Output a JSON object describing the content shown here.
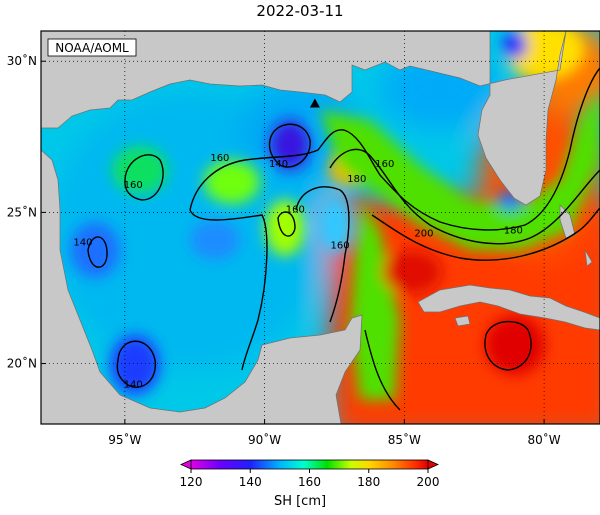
{
  "title": "2022-03-11",
  "credit": "NOAA/AOML",
  "map": {
    "lon_range": [
      -98,
      -78
    ],
    "lat_range": [
      18,
      31
    ],
    "lon_ticks": [
      {
        "value": -95,
        "label": "95˚W"
      },
      {
        "value": -90,
        "label": "90˚W"
      },
      {
        "value": -85,
        "label": "85˚W"
      },
      {
        "value": -80,
        "label": "80˚W"
      }
    ],
    "lat_ticks": [
      {
        "value": 30,
        "label": "30˚N"
      },
      {
        "value": 25,
        "label": "25˚N"
      },
      {
        "value": 20,
        "label": "20˚N"
      }
    ],
    "grid": "dotted",
    "marker": {
      "symbol": "triangle",
      "lon": -88.2,
      "lat": 28.6
    },
    "contour_labels": [
      {
        "text": "160",
        "lon": -94.7,
        "lat": 25.9
      },
      {
        "text": "140",
        "lon": -89.5,
        "lat": 26.6
      },
      {
        "text": "160",
        "lon": -91.6,
        "lat": 26.8
      },
      {
        "text": "160",
        "lon": -88.9,
        "lat": 25.1
      },
      {
        "text": "180",
        "lon": -86.7,
        "lat": 26.1
      },
      {
        "text": "160",
        "lon": -85.7,
        "lat": 26.6
      },
      {
        "text": "160",
        "lon": -87.3,
        "lat": 23.9
      },
      {
        "text": "140",
        "lon": -96.5,
        "lat": 24.0
      },
      {
        "text": "200",
        "lon": -84.3,
        "lat": 24.3
      },
      {
        "text": "180",
        "lon": -81.1,
        "lat": 24.4
      },
      {
        "text": "140",
        "lon": -94.7,
        "lat": 19.3
      }
    ],
    "colors": {
      "land": "#c8c8c8",
      "ocean_no_data": "#ffffff"
    }
  },
  "colorbar": {
    "label": "SH [cm]",
    "min": 120,
    "max": 200,
    "ticks": [
      "120",
      "140",
      "160",
      "180",
      "200"
    ],
    "stops": [
      {
        "v": 120,
        "c": "#e100e6"
      },
      {
        "v": 130,
        "c": "#6a00ff"
      },
      {
        "v": 140,
        "c": "#2020ff"
      },
      {
        "v": 150,
        "c": "#00b4ff"
      },
      {
        "v": 158,
        "c": "#00ffd0"
      },
      {
        "v": 166,
        "c": "#00e000"
      },
      {
        "v": 174,
        "c": "#c8ff00"
      },
      {
        "v": 180,
        "c": "#ffd800"
      },
      {
        "v": 188,
        "c": "#ff8c00"
      },
      {
        "v": 196,
        "c": "#ff2a00"
      },
      {
        "v": 200,
        "c": "#e00000"
      }
    ]
  }
}
